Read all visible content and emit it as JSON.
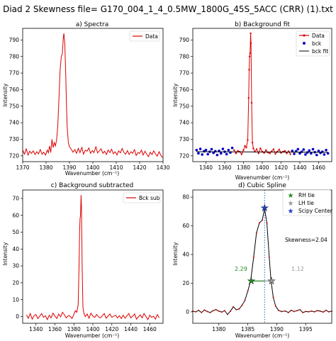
{
  "figure": {
    "suptitle": "Diad 2 Skewness file= G170_004_1_4_0.5MW_1800G_45S_5ACC (CRR) (1).txt"
  },
  "colors": {
    "data": "#dd0000",
    "bck": "#0000cc",
    "fit": "#000000",
    "rh": "#228b22",
    "lh": "#999999",
    "center": "#1f3fcf",
    "vline": "#1f5fbf"
  },
  "chart_data": [
    {
      "id": "a",
      "type": "line",
      "title": "a) Spectra",
      "xlabel": "Wavenumber (cm⁻¹)",
      "ylabel": "Intensity",
      "xlim": [
        1370,
        1430
      ],
      "ylim": [
        716.5,
        797
      ],
      "xticks": [
        1370,
        1380,
        1390,
        1400,
        1410,
        1420,
        1430
      ],
      "yticks": [
        720,
        730,
        740,
        750,
        760,
        770,
        780,
        790
      ],
      "legend": {
        "position": "top-right",
        "entries": [
          "Data"
        ]
      },
      "series": [
        {
          "name": "Data",
          "x": [
            1370.0,
            1370.8,
            1371.5,
            1372.3,
            1373.0,
            1373.8,
            1374.5,
            1375.3,
            1376.0,
            1376.8,
            1377.5,
            1378.3,
            1379.0,
            1379.8,
            1380.5,
            1381.0,
            1381.5,
            1382.0,
            1382.5,
            1383.0,
            1383.5,
            1384.0,
            1384.5,
            1385.0,
            1385.5,
            1386.0,
            1386.5,
            1387.0,
            1387.3,
            1387.6,
            1388.0,
            1388.4,
            1388.7,
            1389.0,
            1389.5,
            1390.0,
            1390.8,
            1391.5,
            1392.3,
            1393.0,
            1393.8,
            1394.5,
            1395.3,
            1396.0,
            1396.8,
            1397.5,
            1398.3,
            1399.0,
            1399.8,
            1400.5,
            1401.3,
            1402.0,
            1402.8,
            1403.5,
            1404.3,
            1405.0,
            1405.8,
            1406.5,
            1407.3,
            1408.0,
            1408.8,
            1409.5,
            1410.3,
            1411.0,
            1411.8,
            1412.5,
            1413.3,
            1414.0,
            1414.8,
            1415.5,
            1416.3,
            1417.0,
            1417.8,
            1418.5,
            1419.3,
            1420.0,
            1420.8,
            1421.5,
            1422.3,
            1423.0,
            1423.8,
            1424.5,
            1425.3,
            1426.0,
            1426.8,
            1427.5,
            1428.3,
            1429.0,
            1429.8
          ],
          "y": [
            723.5,
            721.0,
            724.2,
            720.5,
            722.8,
            721.5,
            723.0,
            720.8,
            722.5,
            721.2,
            723.8,
            721.0,
            722.2,
            720.5,
            723.5,
            721.8,
            726.0,
            722.0,
            730.0,
            725.0,
            728.0,
            726.0,
            729.5,
            738.0,
            755.0,
            772.0,
            780.0,
            782.0,
            790.0,
            794.0,
            788.0,
            770.0,
            752.0,
            738.0,
            728.0,
            725.5,
            724.0,
            722.2,
            723.8,
            721.5,
            724.5,
            722.0,
            725.0,
            721.0,
            723.5,
            722.8,
            724.8,
            721.5,
            723.2,
            722.0,
            725.5,
            721.8,
            723.0,
            724.2,
            721.5,
            722.8,
            720.8,
            723.5,
            722.0,
            724.0,
            721.2,
            722.5,
            720.5,
            723.0,
            721.8,
            724.5,
            722.0,
            721.0,
            723.2,
            720.8,
            722.5,
            721.5,
            723.8,
            720.2,
            722.0,
            721.5,
            723.5,
            720.5,
            722.8,
            721.0,
            719.5,
            722.2,
            720.8,
            723.0,
            721.2,
            719.8,
            722.5,
            720.5,
            719.0
          ]
        }
      ]
    },
    {
      "id": "b",
      "type": "line",
      "title": "b) Background fit",
      "xlabel": "Wavenumber (cm⁻¹)",
      "ylabel": "Intensity",
      "xlim": [
        1326,
        1474
      ],
      "ylim": [
        716.5,
        797
      ],
      "xticks": [
        1340,
        1360,
        1380,
        1400,
        1420,
        1440,
        1460
      ],
      "yticks": [
        720,
        730,
        740,
        750,
        760,
        770,
        780,
        790
      ],
      "legend": {
        "position": "top-right",
        "entries": [
          "Data",
          "bck",
          "bck fit"
        ]
      },
      "series": [
        {
          "name": "Data",
          "x": [
            1370.0,
            1372.0,
            1374.0,
            1376.0,
            1378.0,
            1380.0,
            1381.5,
            1383.0,
            1384.5,
            1385.5,
            1386.0,
            1386.5,
            1387.0,
            1387.6,
            1388.0,
            1388.7,
            1389.5,
            1390.5,
            1392.0,
            1394.0,
            1396.0,
            1398.0,
            1400.0,
            1402.0,
            1404.0,
            1406.0,
            1408.0,
            1410.0,
            1412.0,
            1414.0,
            1416.0,
            1418.0,
            1420.0,
            1422.0,
            1424.0,
            1426.0,
            1428.0,
            1430.0
          ],
          "y": [
            723.5,
            721.5,
            723.0,
            722.5,
            721.0,
            723.5,
            726.0,
            725.0,
            729.5,
            755.0,
            772.0,
            780.0,
            782.0,
            794.0,
            788.0,
            752.0,
            728.0,
            724.5,
            722.5,
            724.0,
            721.5,
            724.5,
            722.5,
            721.8,
            723.5,
            722.0,
            721.5,
            722.8,
            724.0,
            721.2,
            722.5,
            723.8,
            721.8,
            722.5,
            723.0,
            721.5,
            722.8,
            721.0
          ]
        },
        {
          "name": "bck",
          "x": [
            1330,
            1332,
            1334,
            1336,
            1338,
            1340,
            1342,
            1344,
            1346,
            1348,
            1350,
            1352,
            1354,
            1356,
            1358,
            1360,
            1362,
            1364,
            1366,
            1368,
            1432,
            1434,
            1436,
            1438,
            1440,
            1442,
            1444,
            1446,
            1448,
            1450,
            1452,
            1454,
            1456,
            1458,
            1460,
            1462,
            1464,
            1466,
            1468,
            1470
          ],
          "y": [
            723.5,
            721.5,
            724.2,
            720.8,
            722.8,
            723.5,
            721.0,
            722.5,
            724.0,
            721.8,
            722.8,
            720.5,
            723.0,
            721.5,
            724.2,
            722.5,
            721.0,
            723.5,
            722.0,
            724.8,
            723.0,
            721.2,
            722.8,
            724.0,
            721.5,
            722.5,
            723.8,
            720.8,
            722.0,
            723.2,
            721.5,
            724.0,
            722.2,
            720.5,
            723.0,
            721.8,
            722.5,
            720.8,
            723.5,
            721.5
          ]
        },
        {
          "name": "bck fit",
          "x": [
            1330,
            1470
          ],
          "y": [
            722.5,
            722.2
          ]
        }
      ]
    },
    {
      "id": "c",
      "type": "line",
      "title": "c) Background subtracted",
      "xlabel": "Wavenumber (cm⁻¹)",
      "ylabel": "Intensity",
      "xlim": [
        1326,
        1474
      ],
      "ylim": [
        -4,
        75
      ],
      "xticks": [
        1340,
        1360,
        1380,
        1400,
        1420,
        1440,
        1460
      ],
      "yticks": [
        0,
        10,
        20,
        30,
        40,
        50,
        60,
        70
      ],
      "legend": {
        "position": "top-right",
        "entries": [
          "Bck sub"
        ]
      },
      "series": [
        {
          "name": "Bck sub",
          "x": [
            1330,
            1332,
            1334,
            1336,
            1338,
            1340,
            1342,
            1344,
            1346,
            1348,
            1350,
            1352,
            1354,
            1356,
            1358,
            1360,
            1362,
            1364,
            1366,
            1368,
            1370,
            1372,
            1374,
            1376,
            1378,
            1380,
            1381.5,
            1383.0,
            1384.5,
            1385.5,
            1386.0,
            1386.5,
            1387.0,
            1387.6,
            1388.0,
            1388.7,
            1389.5,
            1390.5,
            1392,
            1394,
            1396,
            1398,
            1400,
            1402,
            1404,
            1406,
            1408,
            1410,
            1412,
            1414,
            1416,
            1418,
            1420,
            1422,
            1424,
            1426,
            1428,
            1430,
            1432,
            1434,
            1436,
            1438,
            1440,
            1442,
            1444,
            1446,
            1448,
            1450,
            1452,
            1454,
            1456,
            1458,
            1460,
            1462,
            1464,
            1466,
            1468,
            1470
          ],
          "y": [
            1.0,
            -1.0,
            1.8,
            -1.5,
            0.5,
            1.2,
            -1.2,
            0.2,
            1.8,
            -0.5,
            0.5,
            -1.8,
            0.8,
            -0.8,
            2.0,
            0.2,
            -1.2,
            1.5,
            -0.2,
            2.5,
            1.0,
            -0.8,
            0.5,
            0.2,
            -1.2,
            1.2,
            3.5,
            2.5,
            7.0,
            32.0,
            50.0,
            58.0,
            60.0,
            72.0,
            65.0,
            30.0,
            5.5,
            2.0,
            0.0,
            1.5,
            -1.0,
            2.0,
            0.2,
            -0.5,
            1.2,
            -0.2,
            -0.8,
            0.5,
            1.8,
            -1.0,
            0.2,
            1.5,
            -0.5,
            0.2,
            0.8,
            -0.8,
            0.5,
            -1.2,
            0.8,
            -1.0,
            0.5,
            1.8,
            -0.8,
            0.2,
            1.5,
            -1.5,
            -0.2,
            1.0,
            -0.8,
            1.8,
            0.0,
            -1.8,
            0.8,
            -0.5,
            0.2,
            -1.5,
            1.2,
            -0.8
          ]
        }
      ]
    },
    {
      "id": "d",
      "type": "line",
      "title": "d) Cubic Spline",
      "xlabel": "Wavenumber (cm⁻¹)",
      "ylabel": "Intensity",
      "xlim": [
        1375.5,
        1399.5
      ],
      "ylim": [
        -8,
        85
      ],
      "xticks": [
        1380,
        1385,
        1390,
        1395
      ],
      "yticks": [
        0,
        20,
        40,
        60,
        80
      ],
      "legend": {
        "position": "top-right",
        "entries": [
          "RH tie",
          "LH tie",
          "Scipy Center"
        ]
      },
      "annotations": {
        "skewness": "Skewness=2.04",
        "left_width": "2.29",
        "right_width": "1.12"
      },
      "series": [
        {
          "name": "spline",
          "x": [
            1375.5,
            1376.0,
            1376.5,
            1377.0,
            1377.5,
            1378.0,
            1378.5,
            1379.0,
            1379.5,
            1380.0,
            1380.5,
            1381.0,
            1381.5,
            1382.0,
            1382.5,
            1383.0,
            1383.5,
            1384.0,
            1384.5,
            1385.0,
            1385.5,
            1386.0,
            1386.5,
            1387.0,
            1387.5,
            1387.9,
            1388.3,
            1388.7,
            1389.0,
            1389.4,
            1389.8,
            1390.3,
            1390.8,
            1391.5,
            1392.0,
            1392.5,
            1393.0,
            1393.5,
            1394.0,
            1394.5,
            1395.0,
            1395.5,
            1396.0,
            1396.5,
            1397.0,
            1397.5,
            1398.0,
            1398.5,
            1399.0,
            1399.5
          ],
          "y": [
            0.5,
            0.0,
            1.0,
            -0.5,
            1.2,
            0.2,
            -0.5,
            0.8,
            1.5,
            0.5,
            -0.2,
            0.8,
            -1.8,
            0.5,
            3.5,
            1.5,
            2.0,
            4.5,
            8.0,
            14.5,
            22.0,
            38.0,
            55.0,
            62.0,
            64.0,
            72.0,
            62.0,
            38.0,
            22.0,
            10.0,
            4.0,
            1.0,
            0.2,
            0.5,
            -0.5,
            1.0,
            0.2,
            0.8,
            1.5,
            -0.5,
            0.2,
            0.0,
            0.5,
            0.0,
            0.8,
            0.5,
            -0.2,
            1.0,
            0.0,
            0.5
          ]
        },
        {
          "name": "RH tie",
          "x": [
            1385.6
          ],
          "y": [
            21.5
          ]
        },
        {
          "name": "LH tie",
          "x": [
            1389.1
          ],
          "y": [
            21.5
          ]
        },
        {
          "name": "Scipy Center",
          "x": [
            1387.9
          ],
          "y": [
            72.5
          ]
        }
      ]
    }
  ]
}
